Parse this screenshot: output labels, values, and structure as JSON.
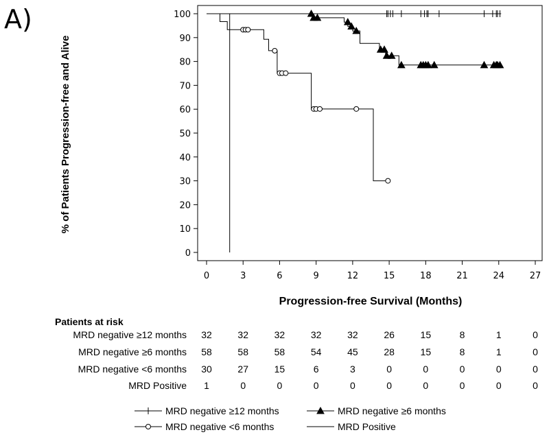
{
  "panel_label": "A)",
  "risk_table": {
    "title": "Patients at risk",
    "rows": [
      {
        "label": "MRD negative ≥12 months",
        "values": [
          "32",
          "32",
          "32",
          "32",
          "32",
          "26",
          "15",
          "8",
          "1",
          "0"
        ]
      },
      {
        "label": "MRD negative ≥6 months",
        "values": [
          "58",
          "58",
          "58",
          "54",
          "45",
          "28",
          "15",
          "8",
          "1",
          "0"
        ]
      },
      {
        "label": "MRD negative <6 months",
        "values": [
          "30",
          "27",
          "15",
          "6",
          "3",
          "0",
          "0",
          "0",
          "0",
          "0"
        ]
      },
      {
        "label": "MRD Positive",
        "values": [
          "1",
          "0",
          "0",
          "0",
          "0",
          "0",
          "0",
          "0",
          "0",
          "0"
        ]
      }
    ]
  },
  "chart_data": {
    "type": "line",
    "subtype": "kaplan-meier step",
    "title": "",
    "xlabel": "Progression-free Survival (Months)",
    "ylabel": "% of Patients Progression-free and Alive",
    "xlim": [
      0,
      27
    ],
    "ylim": [
      0,
      100
    ],
    "xticks": [
      0,
      3,
      6,
      9,
      12,
      15,
      18,
      21,
      24,
      27
    ],
    "yticks": [
      0,
      10,
      20,
      30,
      40,
      50,
      60,
      70,
      80,
      90,
      100
    ],
    "grid": false,
    "legend_position": "bottom",
    "series": [
      {
        "name": "MRD negative ≥12 months",
        "marker": "plus",
        "color": "#000000",
        "steps": [
          [
            0,
            100
          ],
          [
            24.2,
            100
          ]
        ],
        "censors": [
          [
            14.8,
            100
          ],
          [
            14.9,
            100
          ],
          [
            15.1,
            100
          ],
          [
            15.3,
            100
          ],
          [
            16.0,
            100
          ],
          [
            17.6,
            100
          ],
          [
            17.9,
            100
          ],
          [
            18.1,
            100
          ],
          [
            18.2,
            100
          ],
          [
            19.1,
            100
          ],
          [
            22.8,
            100
          ],
          [
            23.5,
            100
          ],
          [
            23.8,
            100
          ],
          [
            23.9,
            100
          ],
          [
            24.1,
            100
          ]
        ]
      },
      {
        "name": "MRD negative ≥6 months",
        "marker": "triangle",
        "color": "#000000",
        "steps": [
          [
            0,
            100
          ],
          [
            8.7,
            100
          ],
          [
            8.7,
            98.3
          ],
          [
            11.3,
            98.3
          ],
          [
            11.3,
            96.5
          ],
          [
            11.6,
            96.5
          ],
          [
            11.6,
            94.7
          ],
          [
            12.0,
            94.7
          ],
          [
            12.0,
            92.8
          ],
          [
            12.6,
            92.8
          ],
          [
            12.6,
            87.6
          ],
          [
            14.2,
            87.6
          ],
          [
            14.2,
            85.0
          ],
          [
            14.7,
            85.0
          ],
          [
            14.7,
            82.4
          ],
          [
            15.8,
            82.4
          ],
          [
            15.8,
            78.5
          ],
          [
            24.2,
            78.5
          ]
        ],
        "censors": [
          [
            8.6,
            100
          ],
          [
            8.8,
            98.3
          ],
          [
            9.1,
            98.3
          ],
          [
            11.6,
            96.5
          ],
          [
            11.9,
            94.7
          ],
          [
            12.3,
            92.8
          ],
          [
            14.3,
            85.0
          ],
          [
            14.6,
            85.0
          ],
          [
            14.8,
            82.4
          ],
          [
            15.2,
            82.4
          ],
          [
            16.0,
            78.5
          ],
          [
            17.6,
            78.5
          ],
          [
            17.8,
            78.5
          ],
          [
            18.0,
            78.5
          ],
          [
            18.2,
            78.5
          ],
          [
            18.7,
            78.5
          ],
          [
            22.8,
            78.5
          ],
          [
            23.6,
            78.5
          ],
          [
            23.8,
            78.5
          ],
          [
            23.9,
            78.5
          ],
          [
            24.1,
            78.5
          ]
        ]
      },
      {
        "name": "MRD negative <6 months",
        "marker": "circle",
        "color": "#000000",
        "steps": [
          [
            0,
            100
          ],
          [
            1.1,
            100
          ],
          [
            1.1,
            96.7
          ],
          [
            1.7,
            96.7
          ],
          [
            1.7,
            93.3
          ],
          [
            4.7,
            93.3
          ],
          [
            4.7,
            89.3
          ],
          [
            5.1,
            89.3
          ],
          [
            5.1,
            84.5
          ],
          [
            5.8,
            84.5
          ],
          [
            5.8,
            75.1
          ],
          [
            8.6,
            75.1
          ],
          [
            8.6,
            60.1
          ],
          [
            13.7,
            60.1
          ],
          [
            13.7,
            30.0
          ],
          [
            14.9,
            30.0
          ]
        ],
        "censors": [
          [
            3.0,
            93.3
          ],
          [
            3.2,
            93.3
          ],
          [
            3.4,
            93.3
          ],
          [
            5.6,
            84.5
          ],
          [
            6.0,
            75.1
          ],
          [
            6.2,
            75.1
          ],
          [
            6.5,
            75.1
          ],
          [
            8.8,
            60.1
          ],
          [
            9.0,
            60.1
          ],
          [
            9.3,
            60.1
          ],
          [
            12.3,
            60.1
          ],
          [
            14.9,
            30.0
          ]
        ]
      },
      {
        "name": "MRD Positive",
        "marker": "none",
        "color": "#000000",
        "steps": [
          [
            0,
            100
          ],
          [
            1.9,
            100
          ],
          [
            1.9,
            0
          ]
        ],
        "censors": []
      }
    ]
  }
}
